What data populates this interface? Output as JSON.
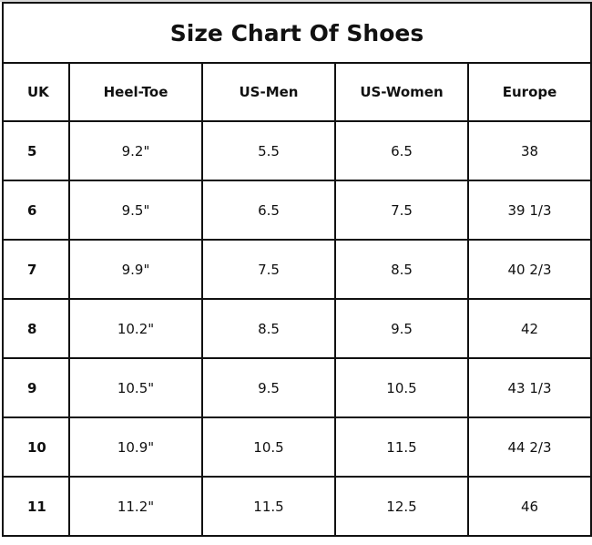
{
  "chart_data": {
    "type": "table",
    "title": "Size Chart Of Shoes",
    "columns": [
      "UK",
      "Heel-Toe",
      "US-Men",
      "US-Women",
      "Europe"
    ],
    "rows": [
      [
        "5",
        "9.2\"",
        "5.5",
        "6.5",
        "38"
      ],
      [
        "6",
        "9.5\"",
        "6.5",
        "7.5",
        "39 1/3"
      ],
      [
        "7",
        "9.9\"",
        "7.5",
        "8.5",
        "40 2/3"
      ],
      [
        "8",
        "10.2\"",
        "8.5",
        "9.5",
        "42"
      ],
      [
        "9",
        "10.5\"",
        "9.5",
        "10.5",
        "43 1/3"
      ],
      [
        "10",
        "10.9\"",
        "10.5",
        "11.5",
        "44 2/3"
      ],
      [
        "11",
        "11.2\"",
        "11.5",
        "12.5",
        "46"
      ]
    ]
  }
}
